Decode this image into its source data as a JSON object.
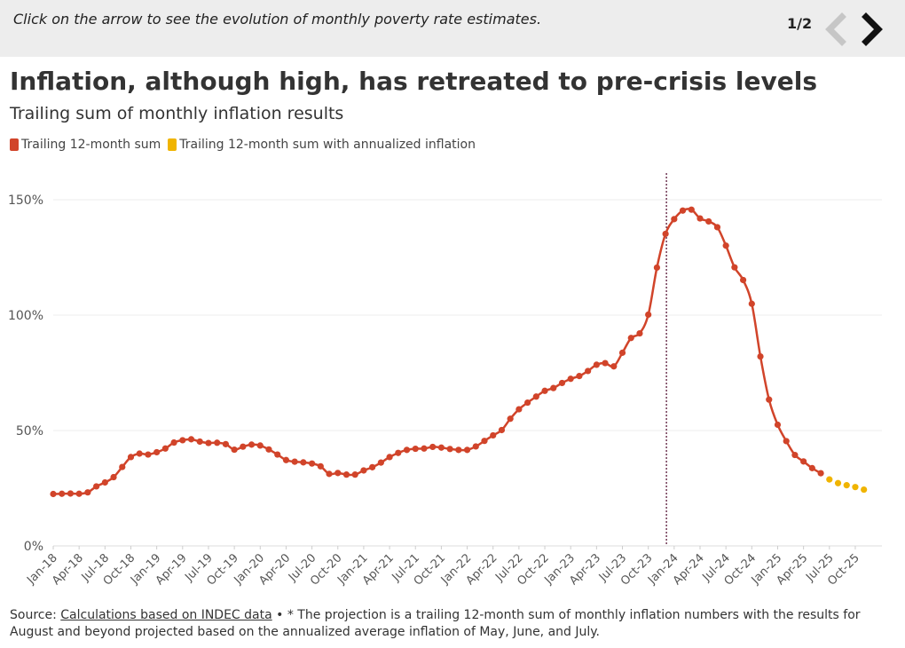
{
  "header": {
    "instruction": "Click on the arrow to see the evolution of monthly poverty rate estimates.",
    "pager": "1/2"
  },
  "title": "Inflation, although high, has retreated to pre-crisis levels",
  "subtitle": "Trailing sum of monthly inflation results",
  "legend": [
    {
      "label": "Trailing 12-month sum",
      "color": "#d1442a"
    },
    {
      "label": "Trailing 12-month sum with annualized inflation",
      "color": "#f0b400"
    }
  ],
  "source": {
    "prefix": "Source: ",
    "link": "Calculations based on INDEC data",
    "note": " • * The projection is a trailing 12-month sum of monthly inflation numbers with the results for August and beyond projected based on the annualized average inflation of May, June, and July."
  },
  "chart_data": {
    "type": "line",
    "title": "Inflation, although high, has retreated to pre-crisis levels",
    "subtitle": "Trailing sum of monthly inflation results",
    "xlabel": "",
    "ylabel": "",
    "ylim": [
      0,
      160
    ],
    "yticks": [
      0,
      50,
      100,
      150
    ],
    "ytick_labels": [
      "0%",
      "50%",
      "100%",
      "150%"
    ],
    "x_start": "Jan-18",
    "x_tick_labels": [
      "Jan-18",
      "Apr-18",
      "Jul-18",
      "Oct-18",
      "Jan-19",
      "Apr-19",
      "Jul-19",
      "Oct-19",
      "Jan-20",
      "Apr-20",
      "Jul-20",
      "Oct-20",
      "Jan-21",
      "Apr-21",
      "Jul-21",
      "Oct-21",
      "Jan-22",
      "Apr-22",
      "Jul-22",
      "Oct-22",
      "Jan-23",
      "Apr-23",
      "Jul-23",
      "Oct-23",
      "Jan-24",
      "Apr-24",
      "Jul-24",
      "Oct-24",
      "Jan-25",
      "Apr-25",
      "Jul-25",
      "Oct-25"
    ],
    "reference_line": {
      "month_index": 71,
      "label": "Dec-23"
    },
    "series": [
      {
        "name": "Trailing 12-month sum",
        "color": "#d1442a",
        "start_index": 0,
        "values": [
          22.5,
          22.6,
          22.7,
          22.6,
          23.2,
          25.8,
          27.5,
          29.8,
          34.2,
          38.5,
          40,
          39.6,
          40.6,
          42.2,
          44.8,
          45.8,
          46.2,
          45.2,
          44.6,
          44.7,
          44.1,
          41.7,
          43,
          43.9,
          43.5,
          41.8,
          39.6,
          37.2,
          36.5,
          36.2,
          35.7,
          34.5,
          31.2,
          31.6,
          30.9,
          30.9,
          32.7,
          34.1,
          36.1,
          38.5,
          40.3,
          41.6,
          42.1,
          42.2,
          42.9,
          42.6,
          42,
          41.6,
          41.6,
          43.1,
          45.5,
          47.9,
          50.2,
          55.1,
          59.2,
          62.1,
          64.7,
          67.2,
          68.4,
          70.6,
          72.4,
          73.6,
          75.8,
          78.5,
          79.2,
          77.8,
          83.7,
          90.1,
          92.1,
          100.2,
          120.6,
          135.2,
          141.6,
          145.3,
          145.7,
          141.9,
          140.6,
          138.1,
          130.1,
          120.7,
          115.2,
          104.9,
          82.1,
          63.4,
          52.5,
          45.4,
          39.4,
          36.6,
          33.7,
          31.5
        ]
      },
      {
        "name": "Trailing 12-month sum with annualized inflation",
        "color": "#f0b400",
        "start_index": 90,
        "values": [
          28.8,
          27.2,
          26.3,
          25.5,
          24.4
        ]
      }
    ]
  }
}
